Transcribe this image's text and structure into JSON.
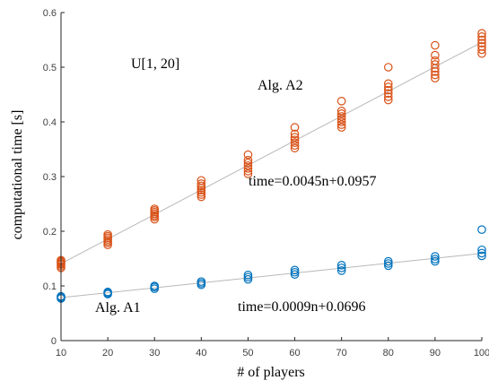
{
  "chart_data": {
    "type": "scatter",
    "xlabel": "# of players",
    "ylabel": "computational time [s]",
    "xlim": [
      10,
      100
    ],
    "ylim": [
      0,
      0.6
    ],
    "xticks": [
      10,
      20,
      30,
      40,
      50,
      60,
      70,
      80,
      90,
      100
    ],
    "yticks": [
      0,
      0.1,
      0.2,
      0.3,
      0.4,
      0.5,
      0.6
    ],
    "grid": false,
    "annotations": {
      "distribution": "U[1, 20]",
      "a2_label": "Alg. A2",
      "a1_label": "Alg. A1",
      "a2_fit_text": "time=0.0045n+0.0957",
      "a1_fit_text": "time=0.0009n+0.0696"
    },
    "series": [
      {
        "name": "Alg. A2",
        "color": "#D95319",
        "fit": {
          "slope": 0.0045,
          "intercept": 0.0957
        },
        "points": [
          {
            "x": 10,
            "y": [
              0.133,
              0.136,
              0.139,
              0.141,
              0.143,
              0.145,
              0.147
            ]
          },
          {
            "x": 20,
            "y": [
              0.175,
              0.179,
              0.182,
              0.185,
              0.188,
              0.191,
              0.194
            ]
          },
          {
            "x": 30,
            "y": [
              0.222,
              0.226,
              0.229,
              0.232,
              0.235,
              0.238,
              0.241
            ]
          },
          {
            "x": 40,
            "y": [
              0.263,
              0.267,
              0.271,
              0.275,
              0.279,
              0.283,
              0.287,
              0.293
            ]
          },
          {
            "x": 50,
            "y": [
              0.305,
              0.31,
              0.315,
              0.32,
              0.325,
              0.33,
              0.34
            ]
          },
          {
            "x": 60,
            "y": [
              0.352,
              0.357,
              0.362,
              0.367,
              0.372,
              0.378,
              0.39
            ]
          },
          {
            "x": 70,
            "y": [
              0.39,
              0.395,
              0.4,
              0.405,
              0.41,
              0.415,
              0.42,
              0.438
            ]
          },
          {
            "x": 80,
            "y": [
              0.44,
              0.446,
              0.452,
              0.458,
              0.464,
              0.47,
              0.5
            ]
          },
          {
            "x": 90,
            "y": [
              0.48,
              0.486,
              0.492,
              0.498,
              0.505,
              0.512,
              0.522,
              0.54
            ]
          },
          {
            "x": 100,
            "y": [
              0.525,
              0.532,
              0.538,
              0.544,
              0.55,
              0.556,
              0.562
            ]
          }
        ]
      },
      {
        "name": "Alg. A1",
        "color": "#0072BD",
        "fit": {
          "slope": 0.0009,
          "intercept": 0.0696
        },
        "points": [
          {
            "x": 10,
            "y": [
              0.077,
              0.079,
              0.081
            ]
          },
          {
            "x": 20,
            "y": [
              0.085,
              0.087,
              0.089
            ]
          },
          {
            "x": 30,
            "y": [
              0.095,
              0.098,
              0.1
            ]
          },
          {
            "x": 40,
            "y": [
              0.102,
              0.105,
              0.108
            ]
          },
          {
            "x": 50,
            "y": [
              0.112,
              0.116,
              0.12
            ]
          },
          {
            "x": 60,
            "y": [
              0.121,
              0.125,
              0.129
            ]
          },
          {
            "x": 70,
            "y": [
              0.128,
              0.133,
              0.138
            ]
          },
          {
            "x": 80,
            "y": [
              0.137,
              0.141,
              0.145
            ]
          },
          {
            "x": 90,
            "y": [
              0.145,
              0.149,
              0.154
            ]
          },
          {
            "x": 100,
            "y": [
              0.155,
              0.16,
              0.166,
              0.203
            ]
          }
        ]
      }
    ]
  }
}
